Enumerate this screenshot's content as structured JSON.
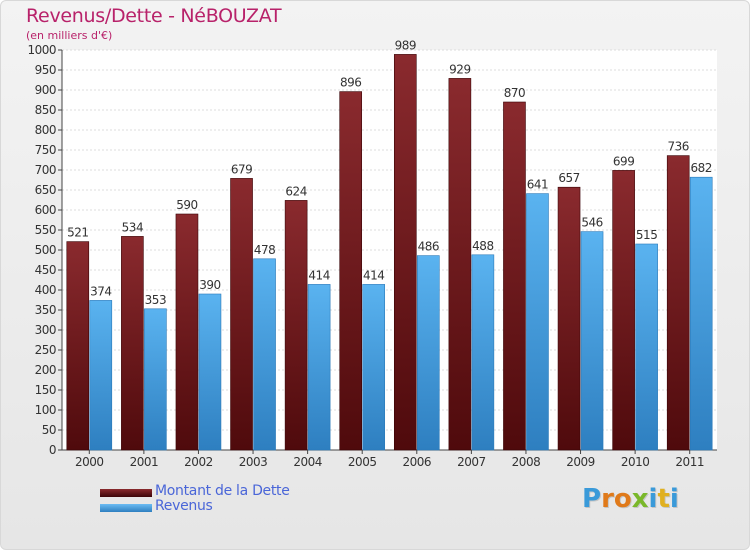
{
  "chart_data": {
    "type": "bar",
    "title": "Revenus/Dette - NéBOUZAT",
    "subtitle": "(en milliers d'€)",
    "xlabel": "",
    "ylabel": "",
    "categories": [
      "2000",
      "2001",
      "2002",
      "2003",
      "2004",
      "2005",
      "2006",
      "2007",
      "2008",
      "2009",
      "2010",
      "2011"
    ],
    "series": [
      {
        "name": "Montant de la Dette",
        "values": [
          521,
          534,
          590,
          679,
          624,
          896,
          989,
          929,
          870,
          657,
          699,
          736
        ],
        "color": "#7a1c20"
      },
      {
        "name": "Revenus",
        "values": [
          374,
          353,
          390,
          478,
          414,
          414,
          486,
          488,
          641,
          546,
          515,
          682
        ],
        "color": "#4aa3e6"
      }
    ],
    "ylim": [
      0,
      1000
    ],
    "ytick_step": 50,
    "grid": true,
    "legend_position": "bottom-left"
  },
  "logo": {
    "letters": [
      "P",
      "r",
      "o",
      "x",
      "i",
      "t",
      "i"
    ],
    "colors": [
      "#3a9ad9",
      "#e07a1a",
      "#e07a1a",
      "#7ab82a",
      "#3a9ad9",
      "#e0b020",
      "#3a9ad9"
    ]
  }
}
